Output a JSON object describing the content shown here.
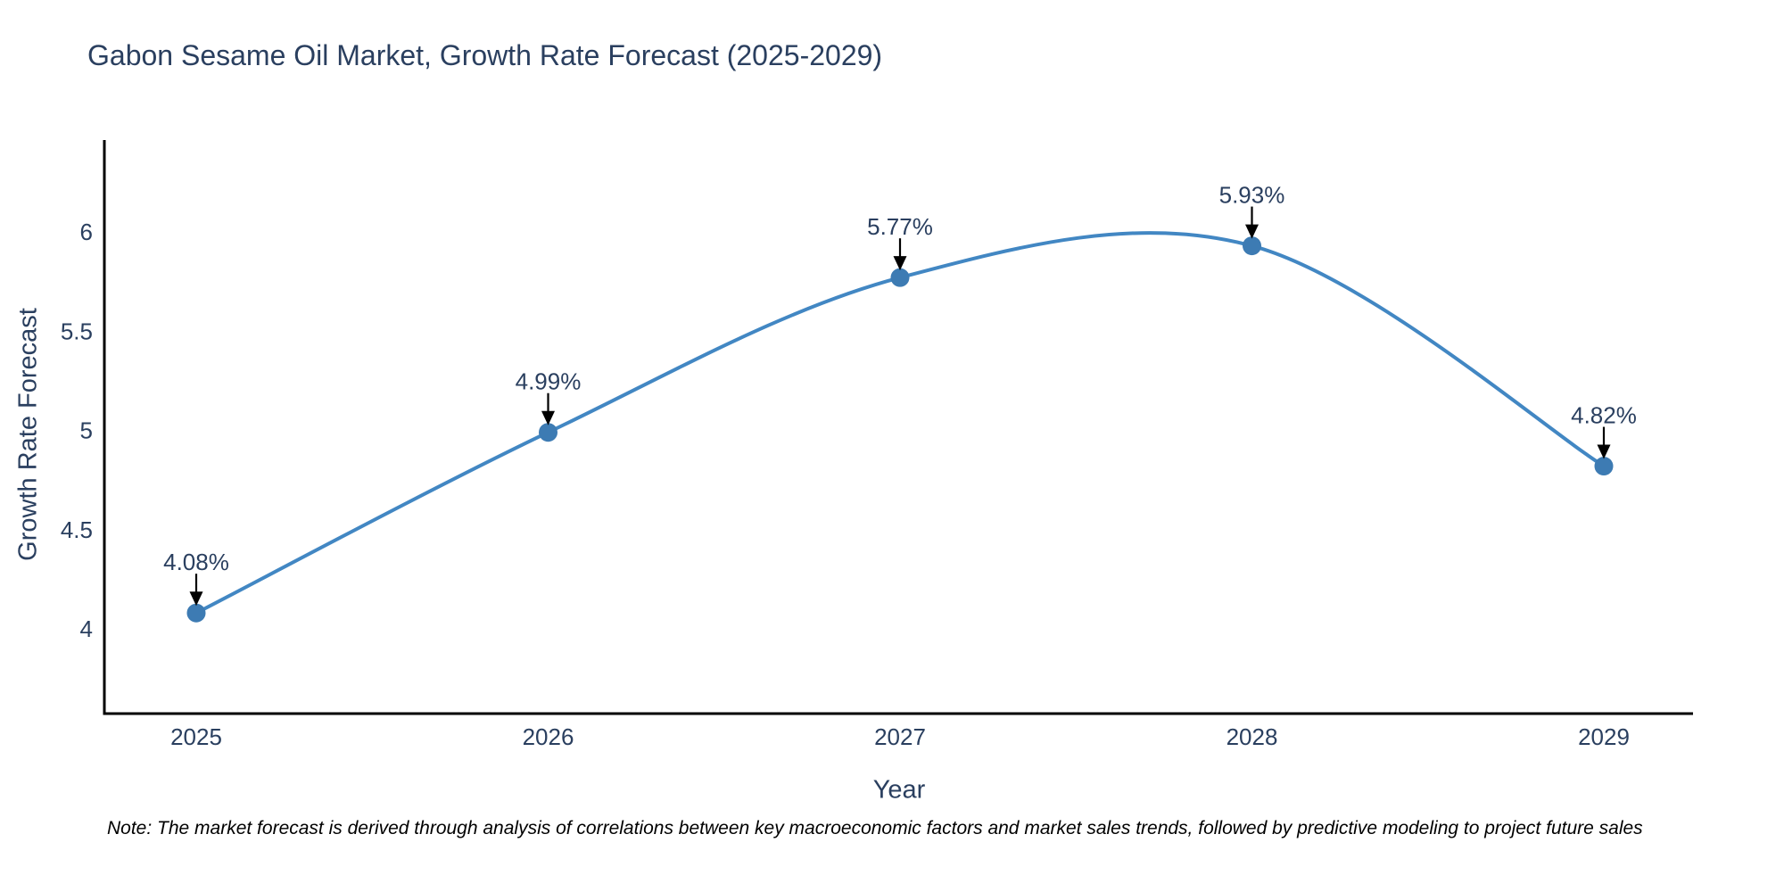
{
  "chart_data": {
    "type": "line",
    "line_shape": "spline",
    "title": "Gabon Sesame Oil Market, Growth Rate Forecast (2025-2029)",
    "x": [
      "2025",
      "2026",
      "2027",
      "2028",
      "2029"
    ],
    "values": [
      4.08,
      4.99,
      5.77,
      5.93,
      4.82
    ],
    "point_labels": [
      "4.08%",
      "4.99%",
      "5.77%",
      "5.93%",
      "4.82%"
    ],
    "xlabel": "Year",
    "ylabel": "Growth Rate Forecast",
    "yticks": [
      4,
      4.5,
      5,
      5.5,
      6
    ],
    "ylim": [
      3.57,
      6.47
    ],
    "grid": false,
    "legend": "none",
    "markers": true,
    "annotations_arrow": "down",
    "colors": {
      "line": "#4287c3",
      "marker": "#3d7bb3",
      "axis": "#000000",
      "text": "#2a3f5f",
      "arrow": "#000000",
      "background": "#ffffff"
    }
  },
  "note": "Note: The market forecast is derived through analysis of correlations between key macroeconomic factors and market sales trends, followed by predictive modeling to project future sales"
}
